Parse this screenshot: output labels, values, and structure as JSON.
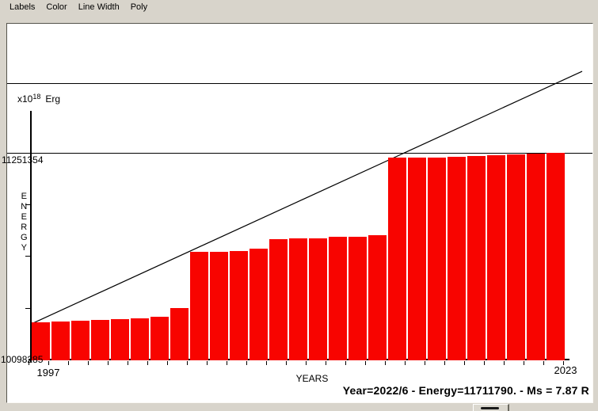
{
  "menu": {
    "items": [
      {
        "label": "Labels"
      },
      {
        "label": "Color"
      },
      {
        "label": "Line Width"
      },
      {
        "label": "Poly"
      }
    ]
  },
  "chart": {
    "unit_prefix": "x10",
    "unit_exponent": "18",
    "unit_suffix": "Erg",
    "y_axis_title": "ENERGY",
    "x_axis_title": "YEARS",
    "y_label_upper": "11251354",
    "y_label_lower": "10098285",
    "x_label_first": "1997",
    "x_label_last": "2023"
  },
  "status": {
    "text": "Year=2022/6 - Energy=11711790. - Ms = 7.87 R"
  },
  "chart_data": {
    "type": "bar",
    "title": "",
    "xlabel": "YEARS",
    "ylabel": "ENERGY",
    "unit": "x10^18 Erg",
    "x": [
      1997,
      1998,
      1999,
      2000,
      2001,
      2002,
      2003,
      2004,
      2005,
      2006,
      2007,
      2008,
      2009,
      2010,
      2011,
      2012,
      2013,
      2014,
      2015,
      2016,
      2017,
      2018,
      2019,
      2020,
      2021,
      2022,
      2023
    ],
    "values": [
      10305000,
      10310000,
      10314000,
      10318000,
      10322000,
      10330000,
      10335000,
      10384000,
      10698000,
      10700000,
      10702000,
      10718000,
      10770000,
      10774000,
      10776000,
      10781000,
      10785000,
      10790000,
      11224000,
      11225000,
      11227000,
      11230000,
      11234000,
      11238000,
      11243000,
      11249000,
      11251000
    ],
    "bar_color": "#f80400",
    "line_color": "#000000",
    "ylim": [
      10098285,
      11700000
    ],
    "y_axis_labeled_values": [
      10098285,
      11251354
    ],
    "y_tick_values": [
      10386552,
      10674820,
      10963087
    ],
    "reference_line_values": [
      11251354,
      11640000
    ],
    "x_tick_count": 28,
    "trend_line": {
      "start": {
        "year": 1997.1,
        "value": 10303000
      },
      "end": {
        "year": 2024.8,
        "value": 11706000
      }
    },
    "grid": "off",
    "legend": "none",
    "cursor_readout": {
      "year": "2022/6",
      "energy": "11711790",
      "ms": "7.87"
    }
  }
}
